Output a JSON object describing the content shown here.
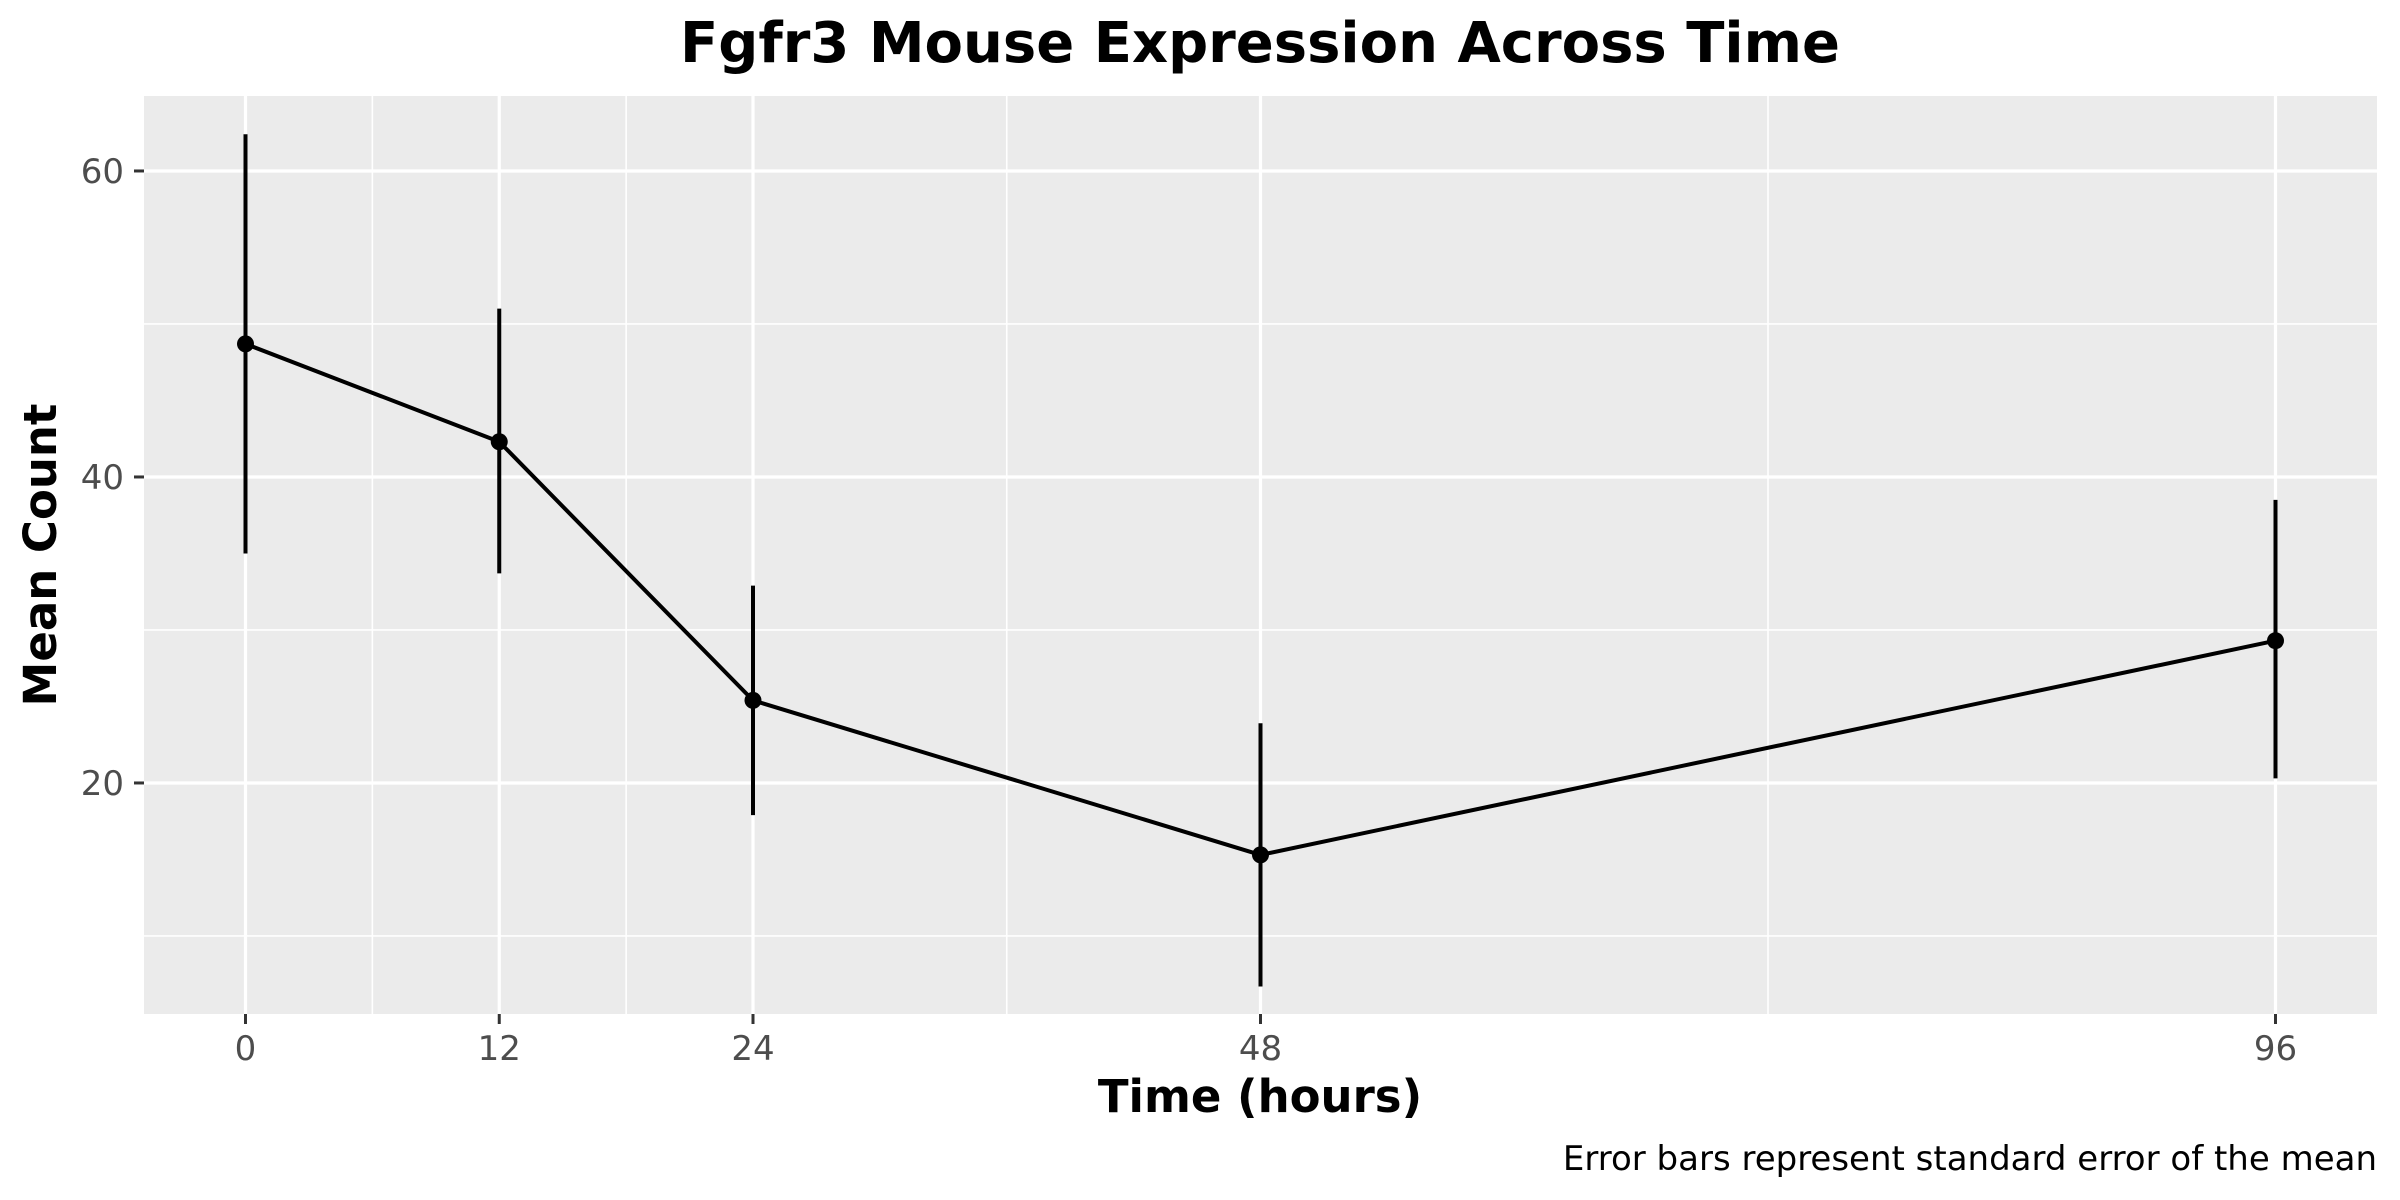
{
  "chart_data": {
    "type": "line",
    "title": "Fgfr3 Mouse Expression Across Time",
    "xlabel": "Time (hours)",
    "ylabel": "Mean Count",
    "caption": "Error bars represent standard error of the mean",
    "x": [
      0,
      12,
      24,
      48,
      96
    ],
    "values": [
      48.7,
      42.3,
      25.4,
      15.3,
      29.3
    ],
    "error_lower": [
      35.0,
      33.7,
      17.9,
      6.7,
      20.3
    ],
    "error_upper": [
      62.4,
      51.0,
      32.9,
      23.9,
      38.5
    ],
    "x_ticks": [
      0,
      12,
      24,
      48,
      96
    ],
    "x_tick_labels": [
      "0",
      "12",
      "24",
      "48",
      "96"
    ],
    "y_ticks": [
      20,
      40,
      60
    ],
    "y_tick_labels": [
      "20",
      "40",
      "60"
    ],
    "x_minor_gridlines": [
      6,
      18,
      36,
      72
    ],
    "y_minor_gridlines": [
      10,
      30,
      50
    ],
    "xlim": [
      -4.8,
      100.8
    ],
    "ylim": [
      4.9,
      64.9
    ],
    "grid": true,
    "legend": "none",
    "colors": {
      "panel_background": "#ebebeb",
      "major_grid": "#ffffff",
      "minor_grid": "#ffffff",
      "line": "#000000",
      "point": "#000000",
      "tick_label": "#4d4d4d",
      "tick_mark": "#333333"
    }
  }
}
